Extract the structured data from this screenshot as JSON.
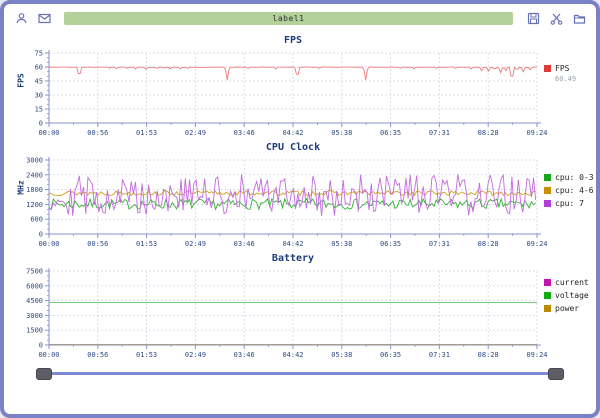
{
  "toolbar": {
    "label": "label1",
    "label_bg": "#b3d299",
    "icon_color": "#6670b8",
    "icons_left": [
      "user-icon",
      "envelope-icon"
    ],
    "icons_right": [
      "save-icon",
      "scissors-icon",
      "folder-icon"
    ]
  },
  "theme": {
    "window_border": "#7a81c5",
    "axis_color": "#8a92cf",
    "grid_color": "#ccd2e4",
    "tick_text_color": "#2c4a86",
    "title_color": "#1d3c7c"
  },
  "chart_data": [
    {
      "type": "line",
      "title": "FPS",
      "ylabel": "FPS",
      "ylim": [
        0,
        75
      ],
      "yticks": [
        0,
        15,
        30,
        45,
        60,
        75
      ],
      "x_ticks": [
        "00:00",
        "00:56",
        "01:53",
        "02:49",
        "03:46",
        "04:42",
        "05:38",
        "06:35",
        "07:31",
        "08:28",
        "09:24"
      ],
      "duration_s": 564,
      "grid": true,
      "legend": [
        {
          "label": "FPS",
          "sublabel": "60.49",
          "color": "#e03c3c"
        }
      ],
      "series": [
        {
          "name": "FPS",
          "color": "#ef7b7b",
          "kind": "baseline-dips",
          "baseline": 60,
          "noise": 0.4,
          "step_s": 2,
          "dips": [
            {
              "t": 35,
              "v": 48
            },
            {
              "t": 70,
              "v": 58.5
            },
            {
              "t": 78,
              "v": 58
            },
            {
              "t": 90,
              "v": 58.5
            },
            {
              "t": 100,
              "v": 58
            },
            {
              "t": 112,
              "v": 57.5
            },
            {
              "t": 125,
              "v": 58
            },
            {
              "t": 133,
              "v": 58.5
            },
            {
              "t": 140,
              "v": 58
            },
            {
              "t": 152,
              "v": 58
            },
            {
              "t": 160,
              "v": 58.5
            },
            {
              "t": 206,
              "v": 46
            },
            {
              "t": 230,
              "v": 58.5
            },
            {
              "t": 262,
              "v": 58
            },
            {
              "t": 287,
              "v": 47
            },
            {
              "t": 312,
              "v": 58.5
            },
            {
              "t": 366,
              "v": 46
            },
            {
              "t": 406,
              "v": 58.5
            },
            {
              "t": 422,
              "v": 58
            },
            {
              "t": 448,
              "v": 58.5
            },
            {
              "t": 470,
              "v": 58.5
            },
            {
              "t": 488,
              "v": 58
            },
            {
              "t": 500,
              "v": 56
            },
            {
              "t": 508,
              "v": 55.5
            },
            {
              "t": 515,
              "v": 57
            },
            {
              "t": 522,
              "v": 54
            },
            {
              "t": 528,
              "v": 56
            },
            {
              "t": 535,
              "v": 44
            },
            {
              "t": 541,
              "v": 56
            },
            {
              "t": 548,
              "v": 55
            },
            {
              "t": 556,
              "v": 57
            }
          ]
        }
      ]
    },
    {
      "type": "line",
      "title": "CPU Clock",
      "ylabel": "MHz",
      "ylim": [
        0,
        3000
      ],
      "yticks": [
        0,
        600,
        1200,
        1800,
        2400,
        3000
      ],
      "x_ticks": [
        "00:00",
        "00:56",
        "01:53",
        "02:49",
        "03:46",
        "04:42",
        "05:38",
        "06:35",
        "07:31",
        "08:28",
        "09:24"
      ],
      "duration_s": 564,
      "grid": true,
      "legend": [
        {
          "label": "cpu: 0-3",
          "color": "#17a617"
        },
        {
          "label": "cpu: 4-6",
          "color": "#c79000"
        },
        {
          "label": "cpu: 7",
          "color": "#b43fd6"
        }
      ],
      "series": [
        {
          "name": "cpu: 0-3",
          "color": "#33b133",
          "kind": "noisy-uniform",
          "min": 1000,
          "max": 1430,
          "seed": 7,
          "step_s": 2.5
        },
        {
          "name": "cpu: 4-6",
          "color": "#d0a11c",
          "kind": "noisy-center",
          "base": 1660,
          "spread": 200,
          "seed": 13,
          "step_s": 2.5
        },
        {
          "name": "cpu: 7",
          "color": "#c46ae0",
          "kind": "noisy-uniform",
          "min": 730,
          "max": 2420,
          "seed": 29,
          "step_s": 2.5
        }
      ]
    },
    {
      "type": "line",
      "title": "Battery",
      "ylabel": "",
      "ylim": [
        0,
        7500
      ],
      "yticks": [
        0,
        1500,
        3000,
        4500,
        6000,
        7500
      ],
      "x_ticks": [
        "00:00",
        "00:56",
        "01:53",
        "02:49",
        "03:46",
        "04:42",
        "05:38",
        "06:35",
        "07:31",
        "08:28",
        "09:24"
      ],
      "duration_s": 564,
      "grid": true,
      "legend": [
        {
          "label": "current",
          "color": "#c213ad"
        },
        {
          "label": "voltage",
          "color": "#0eae0e"
        },
        {
          "label": "power",
          "color": "#bb8a00"
        }
      ],
      "series": [
        {
          "name": "current",
          "color": "#c213ad",
          "kind": "flat",
          "value": 15
        },
        {
          "name": "power",
          "color": "#bb8a00",
          "kind": "flat",
          "value": 40
        },
        {
          "name": "voltage",
          "color": "#55c862",
          "kind": "flat",
          "value": 4300
        }
      ]
    }
  ],
  "slider": {
    "handles": [
      "left",
      "right"
    ]
  }
}
